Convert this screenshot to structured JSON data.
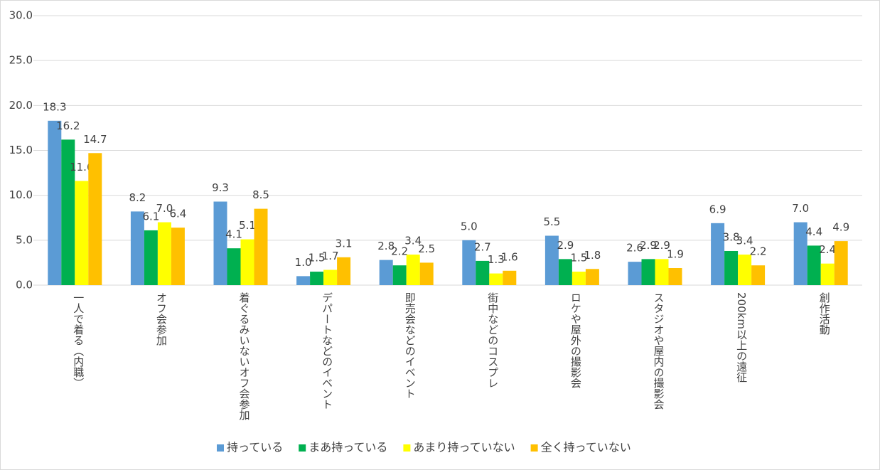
{
  "chart_data": {
    "type": "bar",
    "categories": [
      "一人で着る（内職）",
      "オフ会参加",
      "着ぐるみいないオフ会参加",
      "デパートなどのイベント",
      "即売会などのイベント",
      "街中などのコスプレ",
      "ロケや屋外の撮影会",
      "スタジオや屋内の撮影会",
      "200km以上の遠征",
      "創作活動"
    ],
    "series": [
      {
        "name": "持っている",
        "color": "#5b9bd5",
        "values": [
          18.3,
          8.2,
          9.3,
          1.0,
          2.8,
          5.0,
          5.5,
          2.6,
          6.9,
          7.0
        ],
        "value_labels": [
          "18.3",
          "8.2",
          "9.3",
          "1.0",
          "2.8",
          "5.0",
          "5.5",
          "2.6",
          "6.9",
          "7.0"
        ]
      },
      {
        "name": "まあ持っている",
        "color": "#00b050",
        "values": [
          16.2,
          6.1,
          4.1,
          1.5,
          2.2,
          2.7,
          2.9,
          2.9,
          3.8,
          4.4
        ],
        "value_labels": [
          "16.2",
          "6.1",
          "4.1",
          "1.5",
          "2.2",
          "2.7",
          "2.9",
          "2.9",
          "3.8",
          "4.4"
        ]
      },
      {
        "name": "あまり持っていない",
        "color": "#ffff00",
        "values": [
          11.6,
          7.0,
          5.1,
          1.7,
          3.4,
          1.3,
          1.5,
          2.9,
          3.4,
          2.4
        ],
        "value_labels": [
          "11.6",
          "7.0",
          "5.1",
          "1.7",
          "3.4",
          "1.3",
          "1.5",
          "2.9",
          "3.4",
          "2.4"
        ]
      },
      {
        "name": "全く持っていない",
        "color": "#ffc000",
        "values": [
          14.7,
          6.4,
          8.5,
          3.1,
          2.5,
          1.6,
          1.8,
          1.9,
          2.2,
          4.9
        ],
        "value_labels": [
          "14.7",
          "6.4",
          "8.5",
          "3.1",
          "2.5",
          "1.6",
          "1.8",
          "1.9",
          "2.2",
          "4.9"
        ]
      }
    ],
    "ylim": [
      0,
      30
    ],
    "yticks": [
      {
        "value": 0,
        "label": "0.0"
      },
      {
        "value": 5,
        "label": "5.0"
      },
      {
        "value": 10,
        "label": "10.0"
      },
      {
        "value": 15,
        "label": "15.0"
      },
      {
        "value": 20,
        "label": "20.0"
      },
      {
        "value": 25,
        "label": "25.0"
      },
      {
        "value": 30,
        "label": "30.0"
      }
    ],
    "grid": true,
    "legend": "bottom"
  }
}
